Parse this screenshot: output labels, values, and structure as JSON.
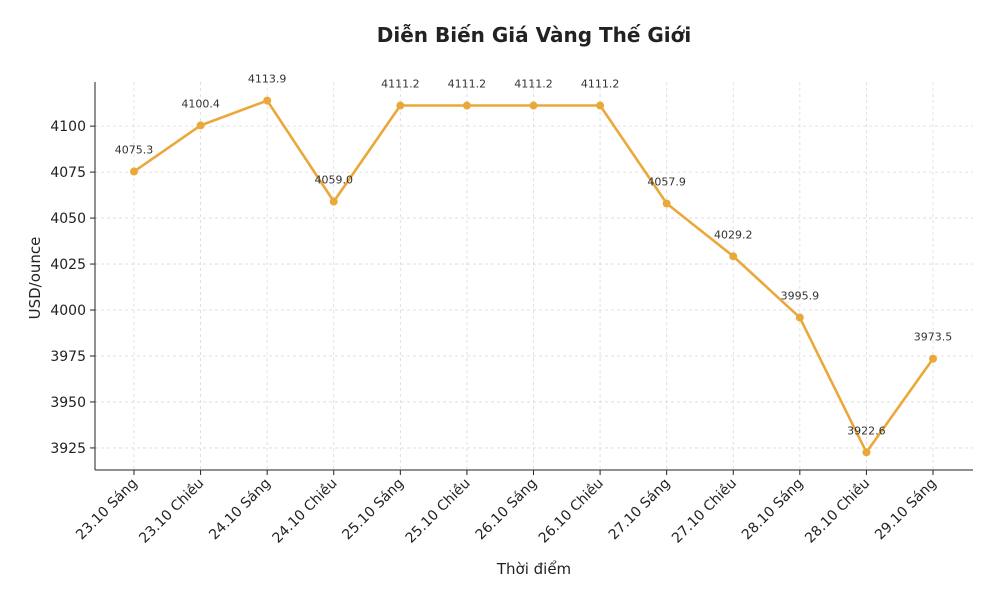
{
  "chart_data": {
    "type": "line",
    "title": "Diễn Biến Giá Vàng Thế Giới",
    "xlabel": "Thời điểm",
    "ylabel": "USD/ounce",
    "categories": [
      "23.10 Sáng",
      "23.10 Chiều",
      "24.10 Sáng",
      "24.10 Chiều",
      "25.10 Sáng",
      "25.10 Chiều",
      "26.10 Sáng",
      "26.10 Chiều",
      "27.10 Sáng",
      "27.10 Chiều",
      "28.10 Sáng",
      "28.10 Chiều",
      "29.10 Sáng"
    ],
    "series": [
      {
        "values": [
          4075.3,
          4100.4,
          4113.9,
          4059.0,
          4111.2,
          4111.2,
          4111.2,
          4111.2,
          4057.9,
          4029.2,
          3995.9,
          3922.6,
          3973.5
        ],
        "labels": [
          "4075.3",
          "4100.4",
          "4113.9",
          "4059.0",
          "4111.2",
          "4111.2",
          "4111.2",
          "4111.2",
          "4057.9",
          "4029.2",
          "3995.9",
          "3922.6",
          "3973.5"
        ],
        "color": "#EBA83A"
      }
    ],
    "yticks": [
      3925,
      3950,
      3975,
      4000,
      4025,
      4050,
      4075,
      4100
    ],
    "ylim": [
      3913,
      4124
    ],
    "grid": true,
    "legend": "none"
  }
}
